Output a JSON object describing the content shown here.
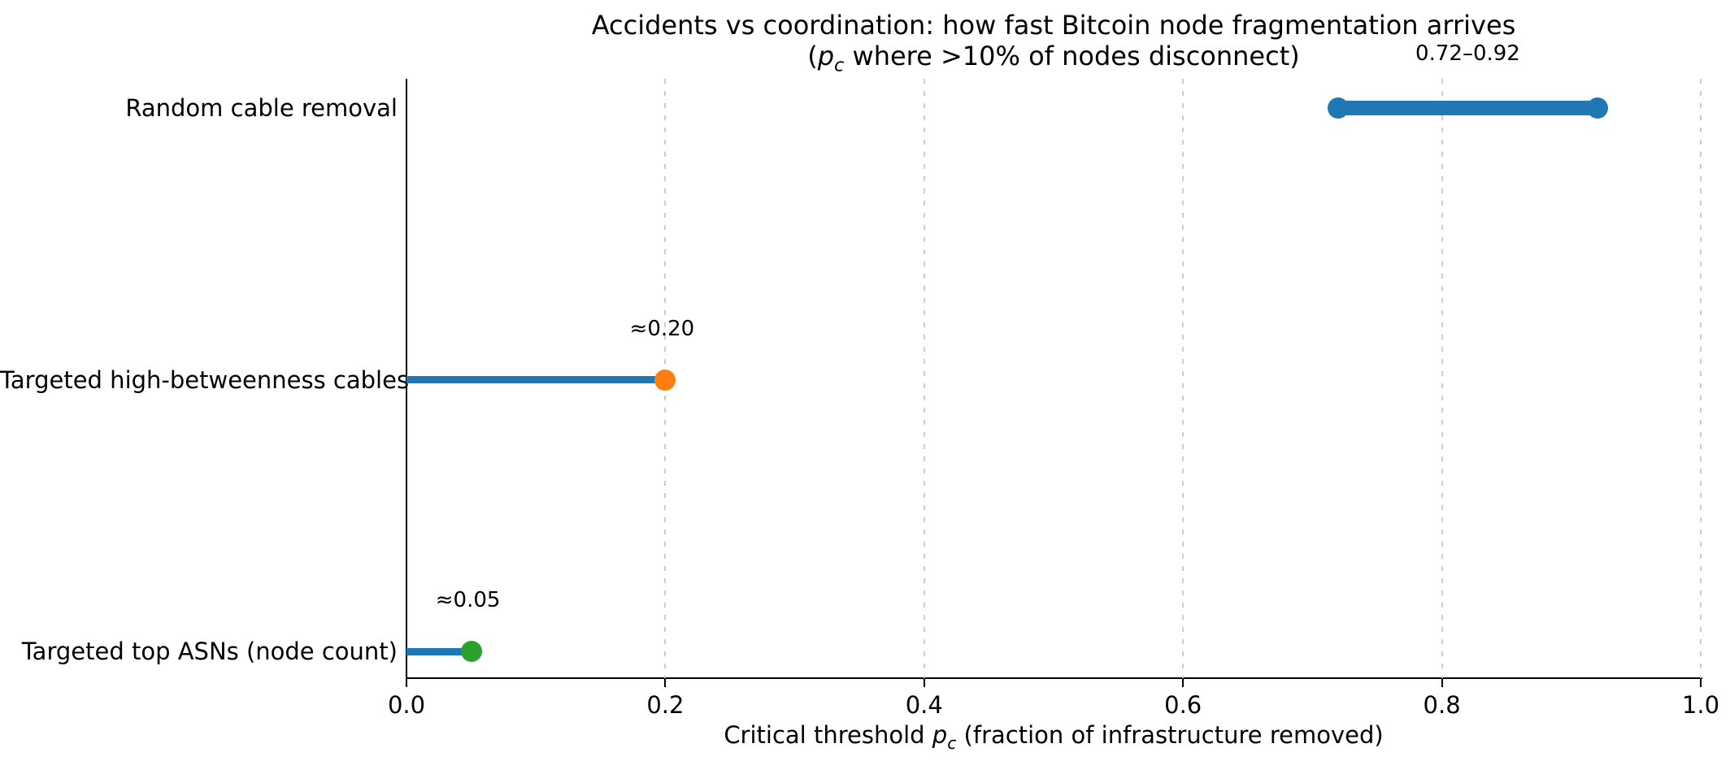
{
  "figure": {
    "title_line1": "Accidents vs coordination: how fast Bitcoin node fragmentation arrives",
    "title_line2_prefix": "(",
    "title_line2_var": "p",
    "title_line2_sub": "c",
    "title_line2_rest": " where >10% of nodes disconnect)",
    "xlabel_prefix": "Critical threshold ",
    "xlabel_var": "p",
    "xlabel_sub": "c",
    "xlabel_suffix": " (fraction of infrastructure removed)"
  },
  "colors": {
    "blue": "#1f77b4",
    "orange": "#ff7f0e",
    "green": "#2ca02c",
    "grid": "#cccccc",
    "axis": "#000000",
    "background": "#ffffff"
  },
  "chart_data": {
    "type": "bar",
    "subtype": "horizontal_lollipop_range",
    "title": "Accidents vs coordination: how fast Bitcoin node fragmentation arrives (p_c where >10% of nodes disconnect)",
    "xlabel": "Critical threshold p_c (fraction of infrastructure removed)",
    "xlim": [
      0.0,
      1.0
    ],
    "x_ticks": [
      "0.0",
      "0.2",
      "0.4",
      "0.6",
      "0.8",
      "1.0"
    ],
    "grid": "vertical dashed gridlines at 0.2, 0.4, 0.6, 0.8, 1.0",
    "legend": "none",
    "categories": [
      "Random cable removal",
      "Targeted high-betweenness cables",
      "Targeted top ASNs (node count)"
    ],
    "rows": [
      {
        "category": "Random cable removal",
        "kind": "range",
        "low": 0.72,
        "high": 0.92,
        "annotation": "0.72–0.92",
        "color": "#1f77b4"
      },
      {
        "category": "Targeted high-betweenness cables",
        "kind": "lollipop",
        "value": 0.2,
        "annotation": "≈0.20",
        "stem_color": "#1f77b4",
        "dot_color": "#ff7f0e"
      },
      {
        "category": "Targeted top ASNs (node count)",
        "kind": "lollipop",
        "value": 0.05,
        "annotation": "≈0.05",
        "stem_color": "#1f77b4",
        "dot_color": "#2ca02c"
      }
    ]
  }
}
